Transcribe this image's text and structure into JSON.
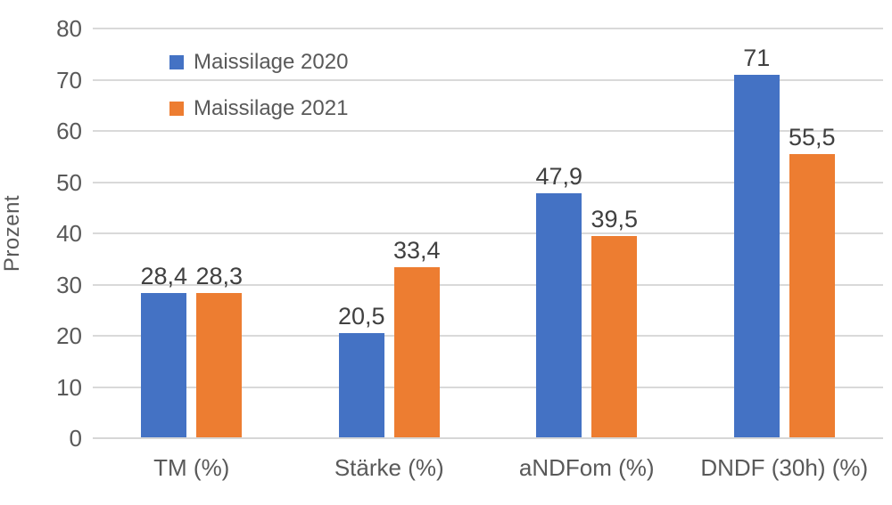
{
  "chart_data": {
    "type": "bar",
    "title": "",
    "ylabel": "Prozent",
    "xlabel": "",
    "categories": [
      "TM (%)",
      "Stärke (%)",
      "aNDFom (%)",
      "DNDF (30h) (%)"
    ],
    "series": [
      {
        "name": "Maissilage 2020",
        "color": "#4472C4",
        "values": [
          28.4,
          20.5,
          47.9,
          71
        ],
        "labels": [
          "28,4",
          "20,5",
          "47,9",
          "71"
        ]
      },
      {
        "name": "Maissilage 2021",
        "color": "#ED7D31",
        "values": [
          28.3,
          33.4,
          39.5,
          55.5
        ],
        "labels": [
          "28,3",
          "33,4",
          "39,5",
          "55,5"
        ]
      }
    ],
    "ylim": [
      0,
      80
    ],
    "yticks": [
      0,
      10,
      20,
      30,
      40,
      50,
      60,
      70,
      80
    ],
    "grid": true,
    "gridline_color": "#d9d9d9",
    "text_color": "#595959",
    "data_label_color": "#404040",
    "legend_position": "top-left"
  }
}
